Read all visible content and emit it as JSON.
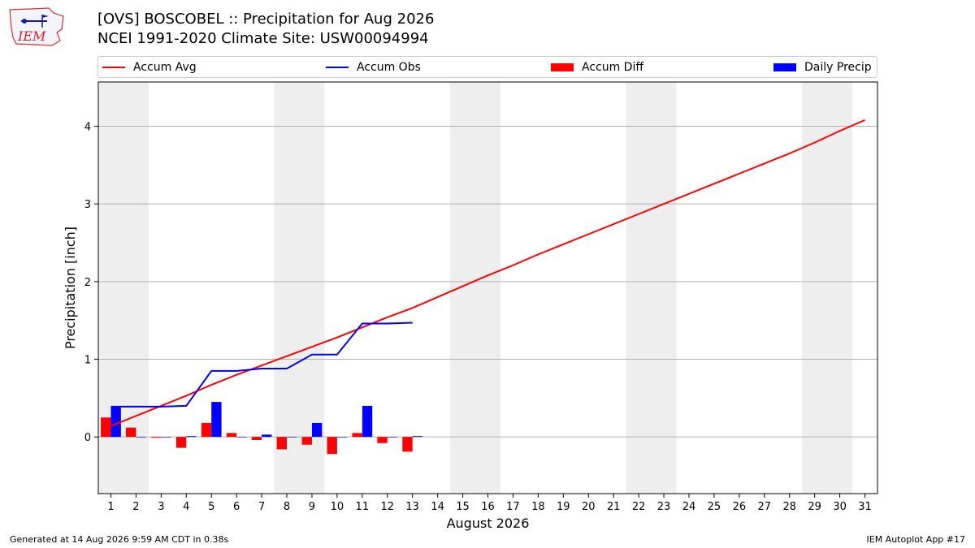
{
  "header": {
    "title_line1": "[OVS] BOSCOBEL :: Precipitation for Aug 2026",
    "title_line2": "NCEI 1991-2020 Climate Site: USW00094994",
    "logo_text": "IEM"
  },
  "footer": {
    "generated": "Generated at 14 Aug 2026 9:59 AM CDT in 0.38s",
    "app": "IEM Autoplot App #17"
  },
  "colors": {
    "accum_avg": "#ff0000",
    "accum_obs": "#0000ff",
    "accum_diff": "#ff0000",
    "daily_precip": "#0000ff",
    "weekend_shade": "#eeeeee",
    "grid": "#b0b0b0"
  },
  "chart_data": {
    "type": "bar",
    "xlabel": "August 2026",
    "ylabel": "Precipitation [inch]",
    "xlim": [
      0.5,
      31.5
    ],
    "ylim": [
      -0.73,
      4.57
    ],
    "yticks": [
      0,
      1,
      2,
      3,
      4
    ],
    "grid": "horizontal",
    "legend_placement": "top",
    "days": [
      1,
      2,
      3,
      4,
      5,
      6,
      7,
      8,
      9,
      10,
      11,
      12,
      13,
      14,
      15,
      16,
      17,
      18,
      19,
      20,
      21,
      22,
      23,
      24,
      25,
      26,
      27,
      28,
      29,
      30,
      31
    ],
    "weekend_shading": [
      [
        1,
        2
      ],
      [
        8,
        9
      ],
      [
        15,
        16
      ],
      [
        22,
        23
      ],
      [
        29,
        30
      ]
    ],
    "legend": [
      "Accum Avg",
      "Accum Obs",
      "Accum Diff",
      "Daily Precip"
    ],
    "series": [
      {
        "name": "Accum Avg",
        "kind": "line",
        "x": [
          1,
          2,
          3,
          4,
          5,
          6,
          7,
          8,
          9,
          10,
          11,
          12,
          13,
          14,
          15,
          16,
          17,
          18,
          19,
          20,
          21,
          22,
          23,
          24,
          25,
          26,
          27,
          28,
          29,
          30,
          31
        ],
        "values": [
          0.14,
          0.27,
          0.4,
          0.53,
          0.67,
          0.8,
          0.92,
          1.04,
          1.16,
          1.28,
          1.41,
          1.54,
          1.66,
          1.8,
          1.94,
          2.08,
          2.21,
          2.35,
          2.48,
          2.61,
          2.74,
          2.87,
          3.0,
          3.13,
          3.26,
          3.39,
          3.52,
          3.65,
          3.79,
          3.94,
          4.08
        ]
      },
      {
        "name": "Accum Obs",
        "kind": "line",
        "x": [
          1,
          2,
          3,
          4,
          5,
          6,
          7,
          8,
          9,
          10,
          11,
          12,
          13
        ],
        "values": [
          0.39,
          0.39,
          0.39,
          0.4,
          0.85,
          0.85,
          0.88,
          0.88,
          1.06,
          1.06,
          1.46,
          1.46,
          1.47
        ]
      },
      {
        "name": "Accum Diff",
        "kind": "bar",
        "x": [
          1,
          2,
          3,
          4,
          5,
          6,
          7,
          8,
          9,
          10,
          11,
          12,
          13
        ],
        "values": [
          0.25,
          0.12,
          -0.01,
          -0.14,
          0.18,
          0.05,
          -0.04,
          -0.16,
          -0.1,
          -0.22,
          0.05,
          -0.08,
          -0.19
        ]
      },
      {
        "name": "Daily Precip",
        "kind": "bar",
        "x": [
          1,
          2,
          3,
          4,
          5,
          6,
          7,
          8,
          9,
          10,
          11,
          12,
          13
        ],
        "values": [
          0.39,
          0,
          0,
          0.01,
          0.45,
          0,
          0.03,
          0,
          0.18,
          0,
          0.4,
          0,
          0.01
        ]
      }
    ]
  }
}
